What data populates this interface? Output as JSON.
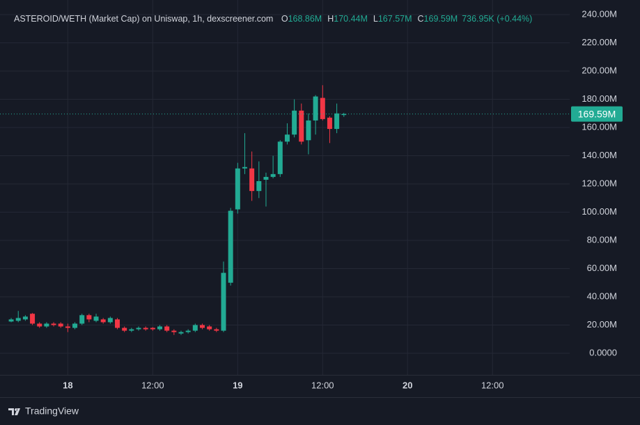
{
  "chart_data": {
    "type": "candlestick",
    "title": "ASTEROID/WETH (Market Cap) on Uniswap, 1h, dexscreener.com",
    "ohlc_legend": [
      {
        "label": "O",
        "value": "168.86M"
      },
      {
        "label": "H",
        "value": "170.44M"
      },
      {
        "label": "L",
        "value": "167.57M"
      },
      {
        "label": "C",
        "value": "169.59M"
      }
    ],
    "change": "736.95K (+0.44%)",
    "x": [
      -8,
      -7,
      -6,
      -5,
      -4,
      -3,
      -2,
      -1,
      0,
      1,
      2,
      3,
      4,
      5,
      6,
      7,
      8,
      9,
      10,
      11,
      12,
      13,
      14,
      15,
      16,
      17,
      18,
      19,
      20,
      21,
      22,
      23,
      24,
      25,
      26,
      27,
      28,
      29,
      30,
      31,
      32,
      33,
      34,
      35,
      36,
      37,
      38,
      39
    ],
    "open": [
      22.5,
      23,
      24,
      28,
      21,
      19,
      21,
      21,
      19,
      18,
      21,
      27,
      23,
      24,
      22,
      24,
      18,
      16,
      17,
      18,
      18,
      17,
      19,
      16,
      14,
      15,
      16,
      20,
      19,
      17,
      16,
      50,
      102,
      131,
      131,
      115,
      123,
      125,
      127,
      150,
      155,
      172,
      151,
      165,
      181,
      167,
      159,
      168.86
    ],
    "high": [
      25,
      30,
      27,
      28.5,
      22,
      22,
      22,
      22,
      21,
      22,
      28,
      28,
      28,
      25,
      26,
      25,
      19,
      18,
      19,
      19,
      18.5,
      20,
      20,
      17,
      16,
      17,
      21,
      21,
      20,
      18,
      65,
      103,
      135,
      156,
      143,
      136,
      128,
      140,
      151,
      163,
      180,
      177,
      170,
      183,
      190,
      168,
      177,
      170.44
    ],
    "low": [
      22,
      22,
      23,
      20,
      18,
      18,
      19,
      18,
      15,
      17,
      20,
      22,
      22,
      21,
      21,
      17,
      15,
      15,
      16,
      16,
      16,
      16,
      15,
      13,
      13,
      14,
      15,
      17,
      16,
      15,
      15,
      48,
      99,
      127,
      108,
      110,
      104,
      124,
      125,
      148,
      153,
      148,
      141,
      155,
      165,
      149,
      156,
      167.57
    ],
    "close": [
      24,
      25,
      26,
      21,
      19,
      21,
      20,
      19,
      18,
      21,
      27,
      24,
      26,
      22,
      25,
      18,
      16,
      17,
      18,
      17,
      17,
      19,
      16,
      15,
      15,
      16,
      20,
      18,
      17,
      16,
      57,
      101,
      131,
      132,
      115,
      122,
      125,
      127,
      150,
      155,
      172,
      150,
      165,
      182,
      166,
      159,
      170,
      169.59
    ],
    "up_color": "#22ab94",
    "down_color": "#f23645",
    "xlim": [
      -8.4,
      70.9
    ],
    "ylim": [
      -15.3,
      250.4
    ],
    "xticks": [
      {
        "value": 0,
        "label": "18"
      },
      {
        "value": 12,
        "label": "12:00"
      },
      {
        "value": 24,
        "label": "19"
      },
      {
        "value": 36,
        "label": "12:00"
      },
      {
        "value": 48,
        "label": "20"
      },
      {
        "value": 60,
        "label": "12:00"
      }
    ],
    "yticks": [
      {
        "value": 0,
        "label": "0.0000"
      },
      {
        "value": 20,
        "label": "20.00M"
      },
      {
        "value": 40,
        "label": "40.00M"
      },
      {
        "value": 60,
        "label": "60.00M"
      },
      {
        "value": 80,
        "label": "80.00M"
      },
      {
        "value": 100,
        "label": "100.00M"
      },
      {
        "value": 120,
        "label": "120.00M"
      },
      {
        "value": 140,
        "label": "140.00M"
      },
      {
        "value": 160,
        "label": "160.00M"
      },
      {
        "value": 180,
        "label": "180.00M"
      },
      {
        "value": 200,
        "label": "200.00M"
      },
      {
        "value": 220,
        "label": "220.00M"
      },
      {
        "value": 240,
        "label": "240.00M"
      }
    ],
    "last_price": {
      "value": 169.59,
      "label": "169.59M"
    },
    "grid": true,
    "brand": "TradingView"
  }
}
